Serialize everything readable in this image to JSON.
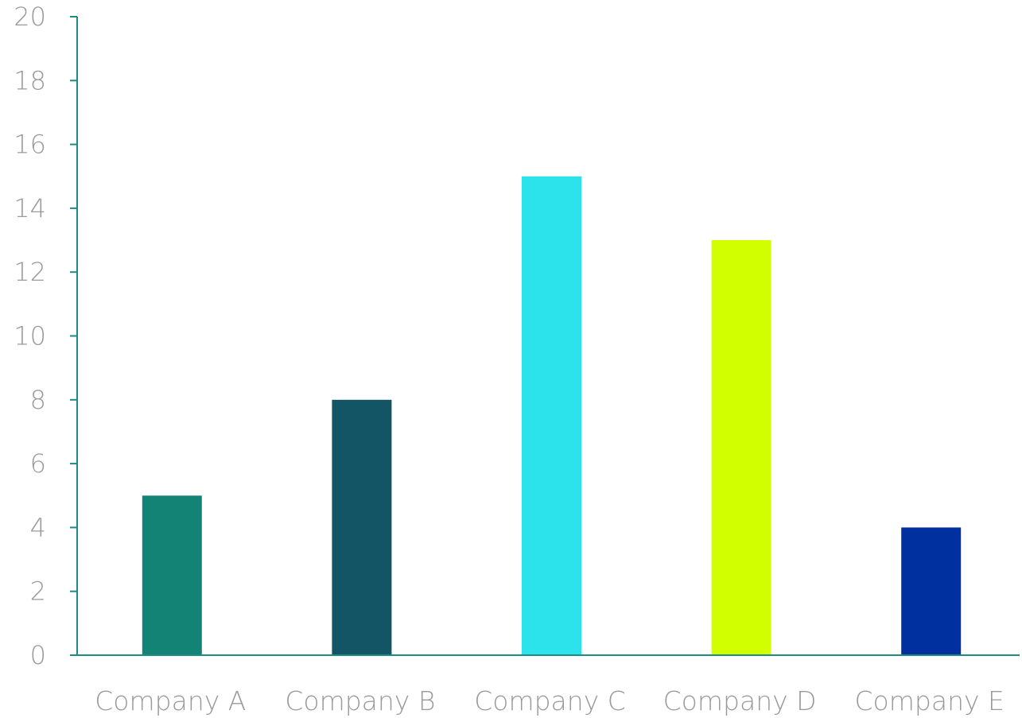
{
  "chart_data": {
    "type": "bar",
    "categories": [
      "Company A",
      "Company B",
      "Company C",
      "Company D",
      "Company E"
    ],
    "values": [
      5,
      8,
      15,
      13,
      4
    ],
    "bar_colors": [
      "#138376",
      "#135465",
      "#2ce2eb",
      "#d2ff00",
      "#002f9f"
    ],
    "ylim": [
      0,
      20
    ],
    "yticks": [
      "0",
      "2",
      "4",
      "6",
      "8",
      "10",
      "12",
      "14",
      "16",
      "18",
      "20"
    ],
    "axis_color": "#1e8a80",
    "grid": false,
    "legend": "none"
  }
}
